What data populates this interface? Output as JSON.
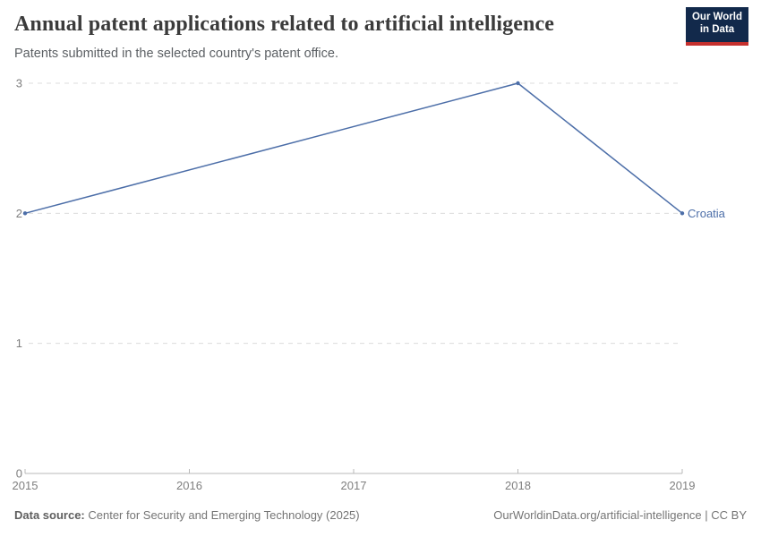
{
  "header": {
    "title": "Annual patent applications related to artificial intelligence",
    "subtitle": "Patents submitted in the selected country's patent office.",
    "logo": {
      "line1": "Our World",
      "line2": "in Data"
    }
  },
  "footer": {
    "source_label": "Data source:",
    "source_value": " Center for Security and Emerging Technology (2025)",
    "attribution": "OurWorldinData.org/artificial-intelligence | CC BY"
  },
  "colors": {
    "line": "#4c6ea8",
    "entity_label": "#4c6ea8",
    "grid": "#dcdcdc",
    "axis": "#b9b9b9",
    "tick_text": "#7f7f7f",
    "logo_bg": "#12294b",
    "logo_stripe": "#c5302e"
  },
  "chart_data": {
    "type": "line",
    "title": "Annual patent applications related to artificial intelligence",
    "subtitle": "Patents submitted in the selected country's patent office.",
    "series": [
      {
        "name": "Croatia",
        "points": [
          {
            "x": 2015,
            "y": 2
          },
          {
            "x": 2018,
            "y": 3
          },
          {
            "x": 2019,
            "y": 2
          }
        ]
      }
    ],
    "entity_label": "Croatia",
    "x_ticks": [
      2015,
      2016,
      2017,
      2018,
      2019
    ],
    "y_ticks": [
      0,
      1,
      2,
      3
    ],
    "xlim": [
      2015,
      2019
    ],
    "ylim": [
      0,
      3
    ],
    "grid": "horizontal-dashed",
    "legend_position": "end-of-line"
  }
}
